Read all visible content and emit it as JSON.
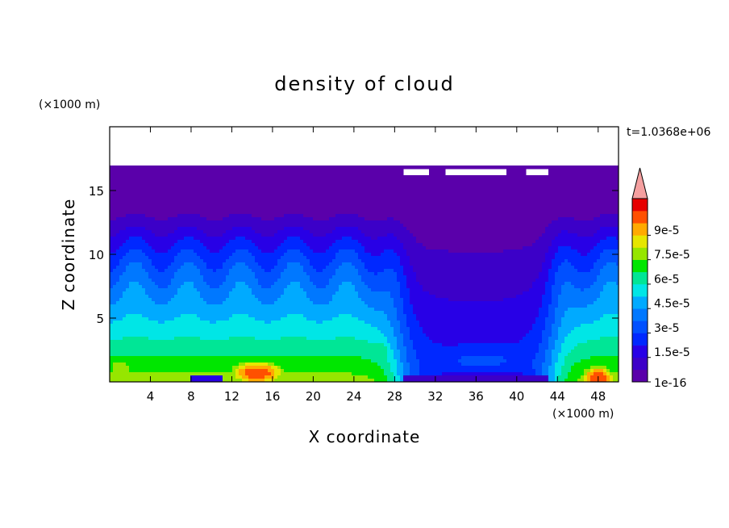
{
  "chart_data": {
    "type": "heatmap",
    "title": "density of cloud",
    "xlabel": "X coordinate",
    "ylabel": "Z coordinate",
    "x_unit": "(×1000 m)",
    "y_unit": "(×1000 m)",
    "time_label": "t=1.0368e+06",
    "xlim": [
      0,
      50
    ],
    "ylim": [
      0,
      20
    ],
    "x_ticks": [
      4,
      8,
      12,
      16,
      20,
      24,
      28,
      32,
      36,
      40,
      44,
      48
    ],
    "y_ticks": [
      5,
      10,
      15
    ],
    "colorbar": {
      "levels": [
        1e-16,
        7.5e-06,
        1.5e-05,
        2.25e-05,
        3e-05,
        3.75e-05,
        4.5e-05,
        5.25e-05,
        6e-05,
        6.75e-05,
        7.5e-05,
        8.25e-05,
        9e-05,
        9.75e-05
      ],
      "colors": [
        "#5a00aa",
        "#3c00c8",
        "#2800e6",
        "#0028ff",
        "#0050ff",
        "#0078ff",
        "#00aaff",
        "#00e6e6",
        "#00e696",
        "#00e600",
        "#96e600",
        "#e6e600",
        "#ffaa00",
        "#ff5000",
        "#e60000"
      ],
      "over_color": "#f5a0a0",
      "labels": [
        {
          "text": "9e-5",
          "value": 9e-05
        },
        {
          "text": "7.5e-5",
          "value": 7.5e-05
        },
        {
          "text": "6e-5",
          "value": 6e-05
        },
        {
          "text": "4.5e-5",
          "value": 4.5e-05
        },
        {
          "text": "3e-5",
          "value": 3e-05
        },
        {
          "text": "1.5e-5",
          "value": 1.5e-05
        },
        {
          "text": "1e-16",
          "value": 1e-16
        }
      ]
    },
    "cloud_top_km": 17,
    "cores": [
      {
        "x": 14.5,
        "z": 0.7,
        "max_level": 14
      },
      {
        "x": 48.0,
        "z": 0.3,
        "max_level": 14
      },
      {
        "x": 1.0,
        "z": 1.0,
        "max_level": 11
      },
      {
        "x": 26.5,
        "z": 2.3,
        "max_level": 9
      }
    ]
  }
}
